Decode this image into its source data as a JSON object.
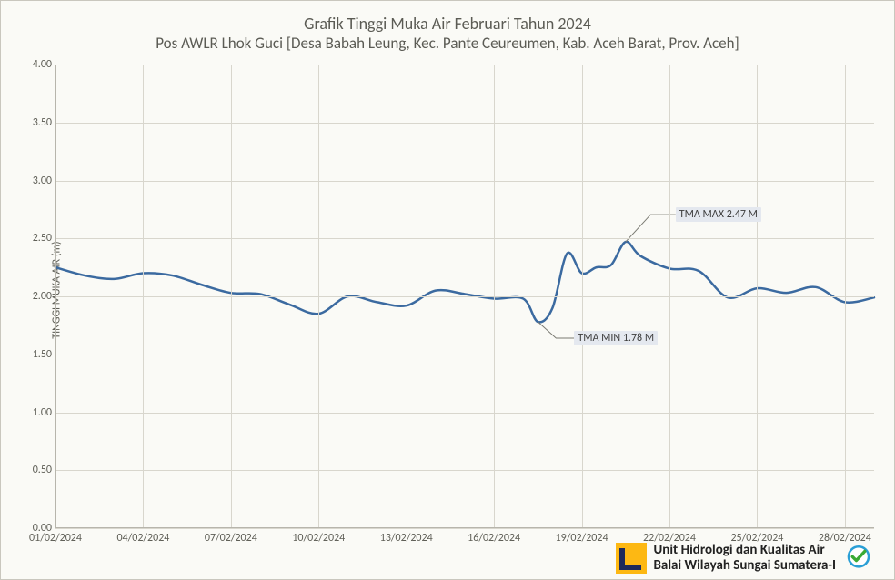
{
  "chart": {
    "type": "line",
    "title": "Grafik Tinggi Muka Air Februari Tahun 2024",
    "subtitle": "Pos AWLR Lhok Guci [Desa Babah Leung, Kec. Pante Ceureumen, Kab. Aceh Barat, Prov. Aceh]",
    "ylabel": "TINGGI MUKA AIR (m)",
    "background_color": "#fafaf6",
    "grid_color": "#d8d6cd",
    "axis_color": "#b7b5ac",
    "line_color": "#3b6aa0",
    "line_width": 2.5,
    "title_fontsize": 18,
    "label_fontsize": 12,
    "ylim": [
      0.0,
      4.0
    ],
    "ytick_step": 0.5,
    "yticks": [
      "0.00",
      "0.50",
      "1.00",
      "1.50",
      "2.00",
      "2.50",
      "3.00",
      "3.50",
      "4.00"
    ],
    "xticks": [
      "01/02/2024",
      "04/02/2024",
      "07/02/2024",
      "10/02/2024",
      "13/02/2024",
      "16/02/2024",
      "19/02/2024",
      "22/02/2024",
      "25/02/2024",
      "28/02/2024"
    ],
    "x_axis_days": [
      1,
      4,
      7,
      10,
      13,
      16,
      19,
      22,
      25,
      28
    ],
    "x_domain": [
      1,
      29
    ],
    "data_days": [
      1,
      2,
      3,
      4,
      5,
      6,
      7,
      8,
      9,
      10,
      11,
      12,
      13,
      14,
      15,
      16,
      17,
      17.5,
      18,
      18.5,
      19,
      19.5,
      20,
      20.5,
      21,
      22,
      23,
      24,
      25,
      26,
      27,
      28,
      29
    ],
    "data_values": [
      2.25,
      2.18,
      2.15,
      2.2,
      2.18,
      2.1,
      2.03,
      2.02,
      1.93,
      1.85,
      2.0,
      1.95,
      1.92,
      2.05,
      2.02,
      1.98,
      1.98,
      1.78,
      1.9,
      2.37,
      2.2,
      2.25,
      2.27,
      2.47,
      2.35,
      2.24,
      2.22,
      1.99,
      2.07,
      2.03,
      2.08,
      1.95,
      1.99
    ],
    "annotations": {
      "min": {
        "label": "TMA MIN  1.78  M",
        "day": 17.5,
        "value": 1.78,
        "label_dx": 40,
        "label_dy": 18
      },
      "max": {
        "label": "TMA MAX  2.47  M",
        "day": 20.5,
        "value": 2.47,
        "label_dx": 55,
        "label_dy": -30
      }
    }
  },
  "footer": {
    "line1": "Unit Hidrologi dan Kualitas Air",
    "line2": "Balai Wilayah Sungai Sumatera-I"
  }
}
